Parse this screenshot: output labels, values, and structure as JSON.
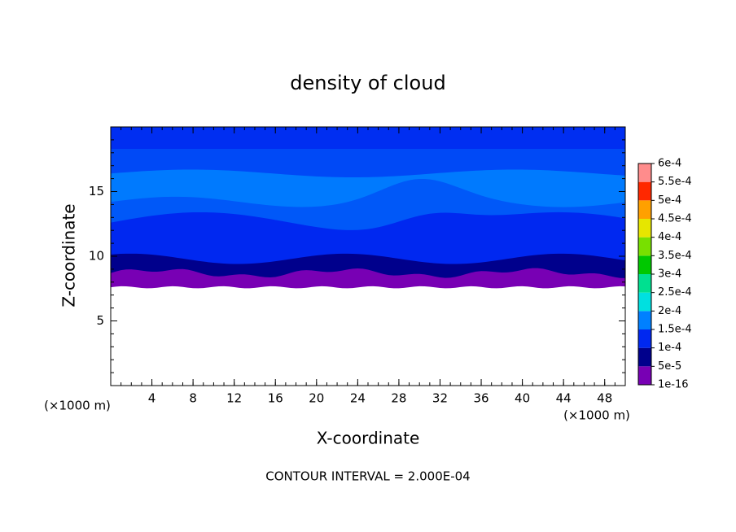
{
  "chart_data": {
    "type": "contour",
    "title": "density of cloud",
    "x_label": "X-coordinate",
    "y_label": "Z-coordinate",
    "x_unit_label": "(×1000 m)",
    "note": "CONTOUR INTERVAL = 2.000E-04",
    "xlim": [
      0,
      50
    ],
    "ylim": [
      0,
      20
    ],
    "xticks": [
      4,
      8,
      12,
      16,
      20,
      24,
      28,
      32,
      36,
      40,
      44,
      48
    ],
    "yticks": [
      5,
      10,
      15
    ],
    "colorbar": {
      "levels": [
        {
          "value": 1e-16,
          "label": "1e-16"
        },
        {
          "value": 5e-05,
          "label": "5e-5"
        },
        {
          "value": 0.0001,
          "label": "1e-4"
        },
        {
          "value": 0.00015,
          "label": "1.5e-4"
        },
        {
          "value": 0.0002,
          "label": "2e-4"
        },
        {
          "value": 0.00025,
          "label": "2.5e-4"
        },
        {
          "value": 0.0003,
          "label": "3e-4"
        },
        {
          "value": 0.00035,
          "label": "3.5e-4"
        },
        {
          "value": 0.0004,
          "label": "4e-4"
        },
        {
          "value": 0.00045,
          "label": "4.5e-4"
        },
        {
          "value": 0.0005,
          "label": "5e-4"
        },
        {
          "value": 0.00055,
          "label": "5.5e-4"
        },
        {
          "value": 0.0006,
          "label": "6e-4"
        }
      ],
      "colors": [
        "#7800b4",
        "#00008c",
        "#0028f0",
        "#0080ff",
        "#00e0e0",
        "#00e090",
        "#00c800",
        "#78e000",
        "#e6e600",
        "#ffa000",
        "#ff2800",
        "#ff8c8c"
      ]
    }
  }
}
